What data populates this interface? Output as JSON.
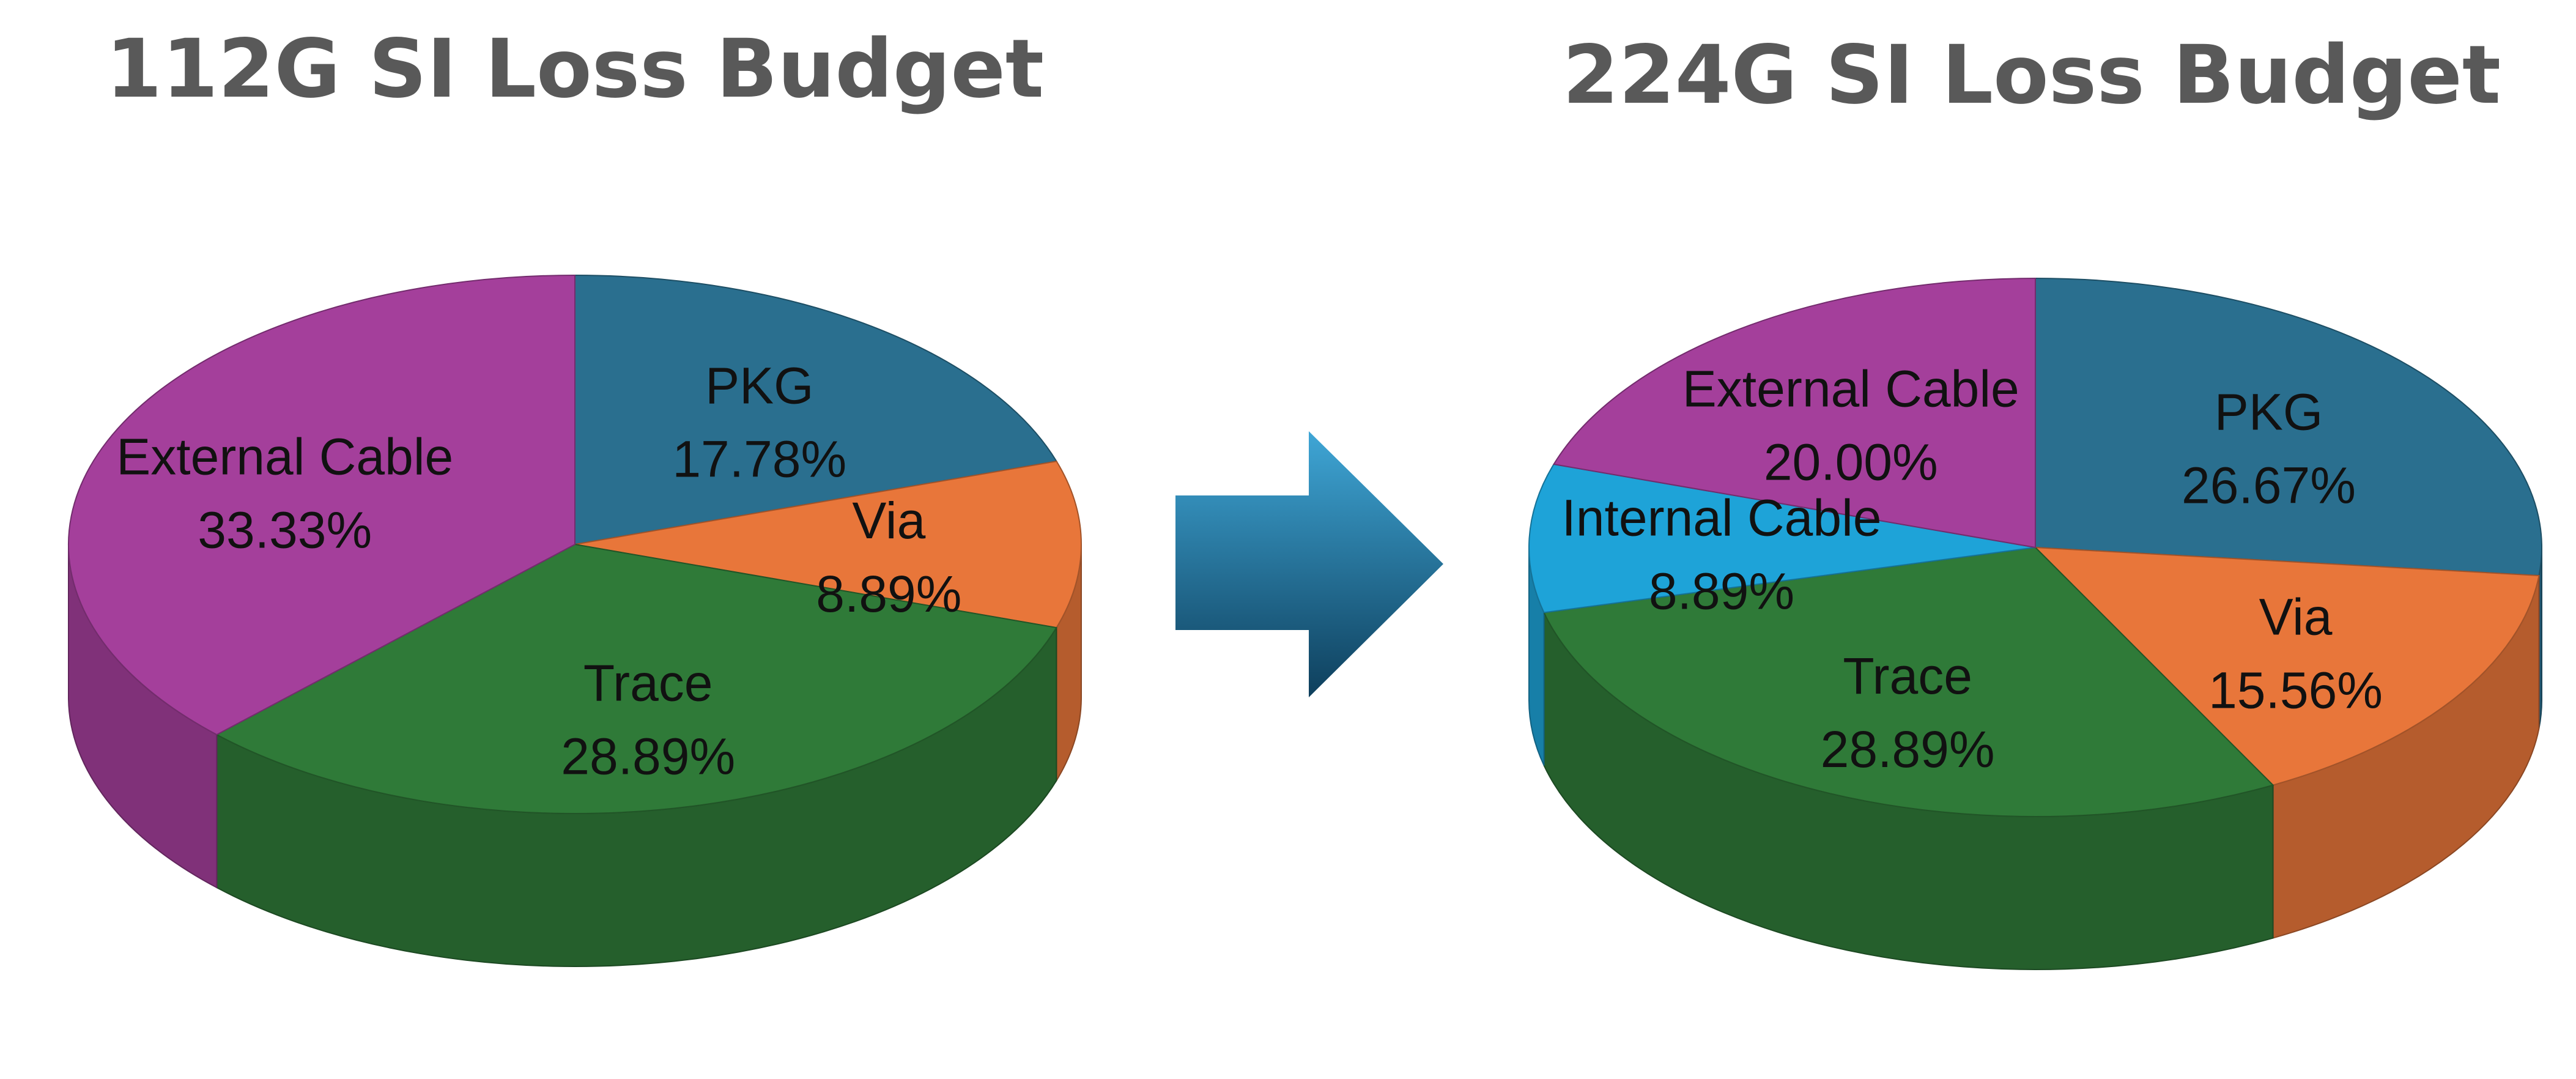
{
  "chart_data": [
    {
      "type": "pie",
      "title": "112G SI Loss Budget",
      "slices": [
        {
          "label": "PKG",
          "value": 17.78,
          "display": "17.78%",
          "color": "#2a6f8f"
        },
        {
          "label": "Via",
          "value": 8.89,
          "display": "8.89%",
          "color": "#e8763a"
        },
        {
          "label": "Trace",
          "value": 28.89,
          "display": "28.89%",
          "color": "#2f7a38"
        },
        {
          "label": "External Cable",
          "value": 33.33,
          "display": "33.33%",
          "color": "#a43f9b"
        }
      ],
      "start_angle_deg": 0,
      "direction": "clockwise",
      "style": "3d"
    },
    {
      "type": "pie",
      "title": "224G SI Loss Budget",
      "slices": [
        {
          "label": "PKG",
          "value": 26.67,
          "display": "26.67%",
          "color": "#2a6f8f"
        },
        {
          "label": "Via",
          "value": 15.56,
          "display": "15.56%",
          "color": "#e8763a"
        },
        {
          "label": "Trace",
          "value": 28.89,
          "display": "28.89%",
          "color": "#2f7a38"
        },
        {
          "label": "Internal Cable",
          "value": 8.89,
          "display": "8.89%",
          "color": "#1ea3d8"
        },
        {
          "label": "External Cable",
          "value": 20.0,
          "display": "20.00%",
          "color": "#a43f9b"
        }
      ],
      "start_angle_deg": 0,
      "direction": "clockwise",
      "style": "3d"
    }
  ],
  "transition": {
    "icon": "arrow-right-icon",
    "color_top": "#3fa6d6",
    "color_bottom": "#0e3f5c"
  }
}
